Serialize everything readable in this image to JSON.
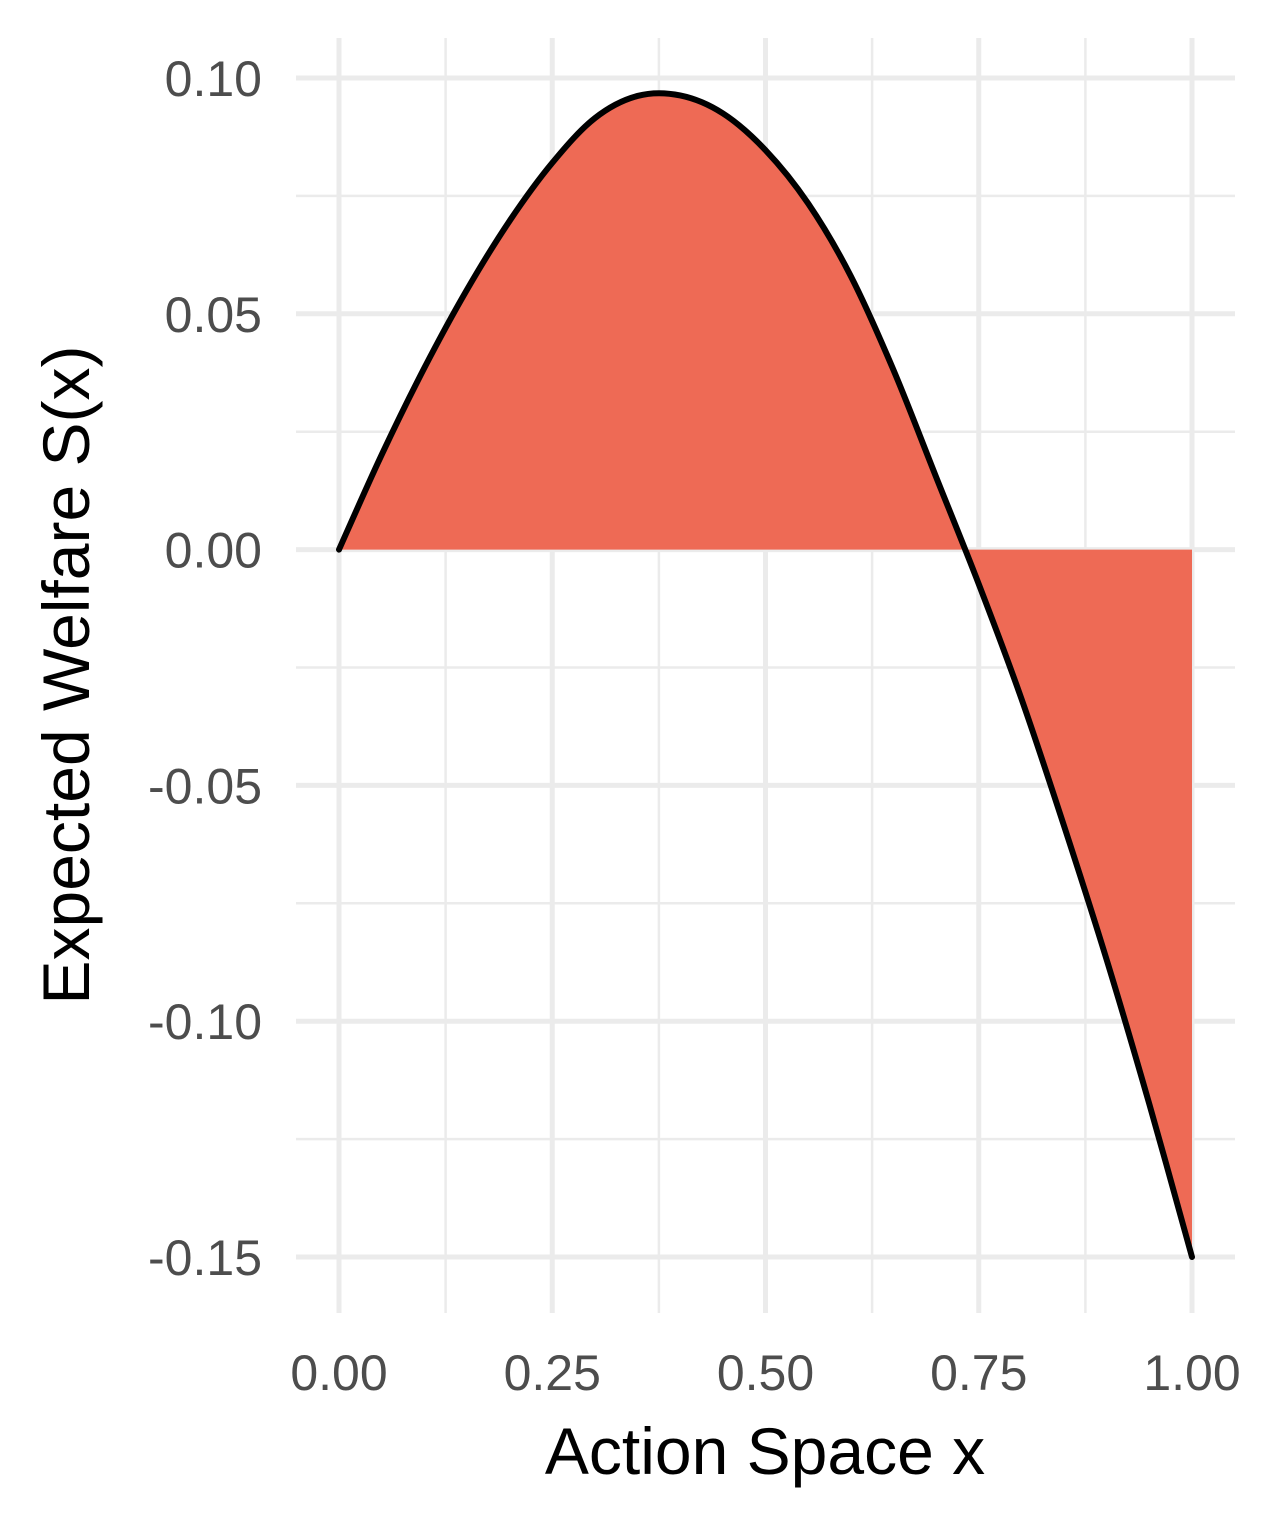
{
  "chart_data": {
    "type": "area",
    "xlabel": "Action Space x",
    "ylabel": "Expected Welfare S(x)",
    "xlim": [
      0,
      1
    ],
    "ylim": [
      -0.15,
      0.1
    ],
    "x_ticks": [
      0,
      0.25,
      0.5,
      0.75,
      1
    ],
    "x_tick_labels": [
      "0.00",
      "0.25",
      "0.50",
      "0.75",
      "1.00"
    ],
    "y_ticks": [
      -0.15,
      -0.1,
      -0.05,
      0,
      0.05,
      0.1
    ],
    "y_tick_labels": [
      "-0.15",
      "-0.10",
      "-0.05",
      "0.00",
      "0.05",
      "0.10"
    ],
    "grid": true,
    "legend": "none",
    "fill_color": "#EE6A55",
    "line_color": "#000000",
    "fill_baseline": 0,
    "series": [
      {
        "x": [
          0,
          0.05,
          0.1,
          0.15,
          0.2,
          0.25,
          0.3,
          0.35,
          0.4,
          0.45,
          0.5,
          0.55,
          0.6,
          0.65,
          0.7,
          0.75,
          0.8,
          0.85,
          0.9,
          0.95,
          1.0
        ],
        "values": [
          0,
          0.0201,
          0.0385,
          0.0551,
          0.0697,
          0.082,
          0.0915,
          0.0962,
          0.0963,
          0.0925,
          0.0847,
          0.0734,
          0.058,
          0.0381,
          0.0154,
          -0.0073,
          -0.0316,
          -0.0586,
          -0.087,
          -0.1176,
          -0.15
        ]
      }
    ]
  }
}
